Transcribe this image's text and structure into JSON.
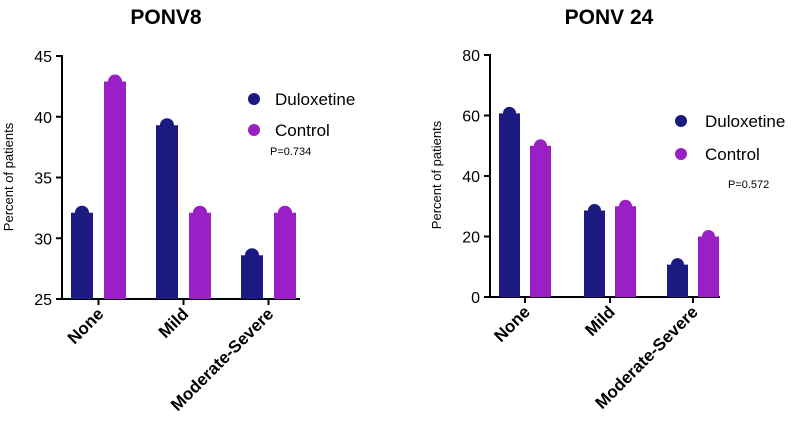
{
  "chart_data": [
    {
      "type": "bar",
      "title": "PONV8",
      "xlabel": "",
      "ylabel": "Percent of patients",
      "ylim": [
        25,
        45
      ],
      "yticks": [
        25,
        30,
        35,
        40,
        45
      ],
      "categories": [
        "None",
        "Mild",
        "Moderate-Severe"
      ],
      "series": [
        {
          "name": "Duloxetine",
          "color": "#1a1a80",
          "values": [
            32.1,
            39.3,
            28.6
          ]
        },
        {
          "name": "Control",
          "color": "#9a1fc4",
          "values": [
            42.9,
            32.1,
            32.1
          ]
        }
      ],
      "annotation": "P=0.734",
      "legend_position": "top-right"
    },
    {
      "type": "bar",
      "title": "PONV 24",
      "xlabel": "",
      "ylabel": "Percent of patients",
      "ylim": [
        0,
        80
      ],
      "yticks": [
        0,
        20,
        40,
        60,
        80
      ],
      "categories": [
        "None",
        "Mild",
        "Moderate-Severe"
      ],
      "series": [
        {
          "name": "Duloxetine",
          "color": "#1a1a80",
          "values": [
            60.7,
            28.6,
            10.7
          ]
        },
        {
          "name": "Control",
          "color": "#9a1fc4",
          "values": [
            50.0,
            30.0,
            20.0
          ]
        }
      ],
      "annotation": "P=0.572",
      "legend_position": "top-right"
    }
  ]
}
